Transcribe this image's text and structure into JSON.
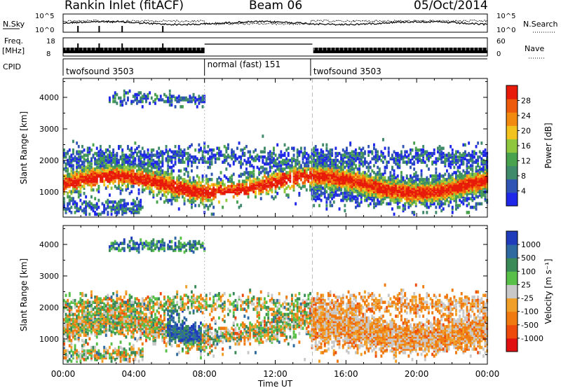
{
  "header": {
    "station": "Rankin Inlet (fitACF)",
    "beam": "Beam 06",
    "date": "05/Oct/2014"
  },
  "colors": {
    "power_scale": [
      "#1f28e8",
      "#2f54b4",
      "#3e8a6a",
      "#49a24e",
      "#8fc83e",
      "#f2c21e",
      "#f28a10",
      "#ee5a0c",
      "#e81a0a"
    ],
    "velocity_scale": [
      "#1e3cbc",
      "#2e6aa0",
      "#3a8a58",
      "#58c048",
      "#c8c8c8",
      "#f0a028",
      "#f07a10",
      "#ee4a0c",
      "#e01010"
    ]
  },
  "chart_data": [
    {
      "type": "line",
      "panel": "noise",
      "left_label": "N.Sky",
      "right_label": "N.Search",
      "left_ticks": [
        "10^5",
        "10^0"
      ],
      "right_ticks": [
        "10^5",
        "10^0"
      ]
    },
    {
      "type": "line",
      "panel": "frequency",
      "left_label": "Freq.",
      "left_unit": "[MHz]",
      "right_label": "Nave",
      "left_ticks": [
        "18",
        "8"
      ],
      "right_ticks": [
        "60",
        "0"
      ]
    },
    {
      "type": "table",
      "panel": "cpid",
      "label": "CPID",
      "segments": [
        {
          "start_hour": 0,
          "end_hour": 8,
          "name": "twofsound 3503"
        },
        {
          "start_hour": 8,
          "end_hour": 14,
          "name": "normal (fast) 151"
        },
        {
          "start_hour": 14,
          "end_hour": 24,
          "name": "twofsound 3503"
        }
      ]
    },
    {
      "type": "heatmap",
      "panel": "power",
      "ylabel": "Slant Range [km]",
      "yticks": [
        "1000",
        "2000",
        "3000",
        "4000"
      ],
      "ylim": [
        200,
        4600
      ],
      "xlim": [
        0,
        24
      ],
      "colorbar_label": "Power [dB]",
      "colorbar_ticks": [
        "4",
        "8",
        "12",
        "16",
        "20",
        "24",
        "28"
      ],
      "colorbar_range": [
        0,
        32
      ]
    },
    {
      "type": "heatmap",
      "panel": "velocity",
      "ylabel": "Slant Range [km]",
      "xlabel": "Time UT",
      "xticks": [
        "00:00",
        "04:00",
        "08:00",
        "12:00",
        "16:00",
        "20:00",
        "00:00"
      ],
      "yticks": [
        "1000",
        "2000",
        "3000",
        "4000"
      ],
      "ylim": [
        200,
        4600
      ],
      "xlim": [
        0,
        24
      ],
      "colorbar_label": "Velocity [m s⁻¹]",
      "colorbar_ticks": [
        "1000",
        "500",
        "100",
        "25",
        "-25",
        "-100",
        "-500",
        "-1000"
      ]
    }
  ]
}
